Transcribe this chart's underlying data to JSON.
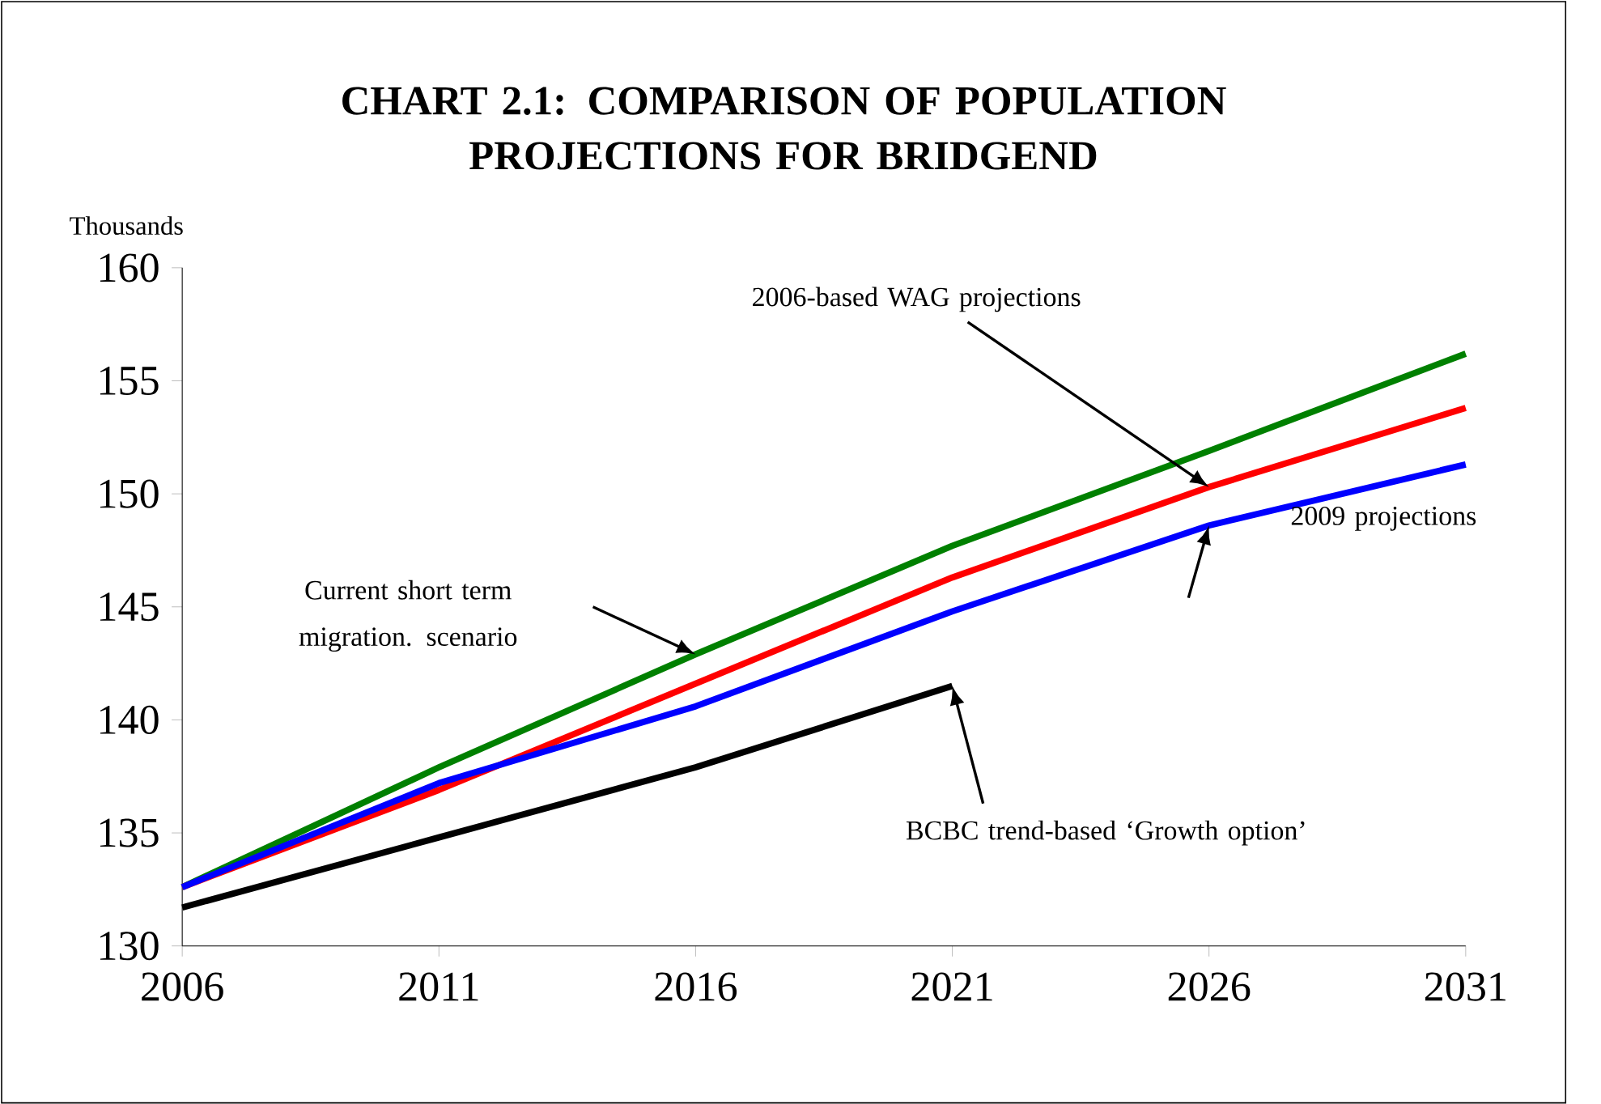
{
  "chart_data": {
    "type": "line",
    "title": "CHART 2.1: COMPARISON OF POPULATION PROJECTIONS FOR BRIDGEND",
    "ylabel": "Thousands",
    "x": [
      2006,
      2011,
      2016,
      2021,
      2026,
      2031
    ],
    "xlim": [
      2006,
      2031
    ],
    "xticks": [
      2006,
      2011,
      2016,
      2021,
      2026,
      2031
    ],
    "ylim": [
      130,
      160
    ],
    "yticks": [
      130,
      135,
      140,
      145,
      150,
      155,
      160
    ],
    "series": [
      {
        "name": "Current short term migration. scenario",
        "color": "#008000",
        "values": [
          132.6,
          137.9,
          142.9,
          147.7,
          151.9,
          156.2
        ]
      },
      {
        "name": "2006-based WAG projections",
        "color": "#ff0000",
        "values": [
          132.6,
          136.9,
          141.6,
          146.3,
          150.3,
          153.8
        ]
      },
      {
        "name": "2009 projections",
        "color": "#0000ff",
        "values": [
          132.6,
          137.2,
          140.6,
          144.8,
          148.6,
          151.3
        ]
      },
      {
        "name": "BCBC trend-based ‘Growth option’",
        "color": "#000000",
        "values": [
          131.7,
          134.8,
          137.9,
          141.5,
          null,
          null
        ]
      }
    ]
  }
}
